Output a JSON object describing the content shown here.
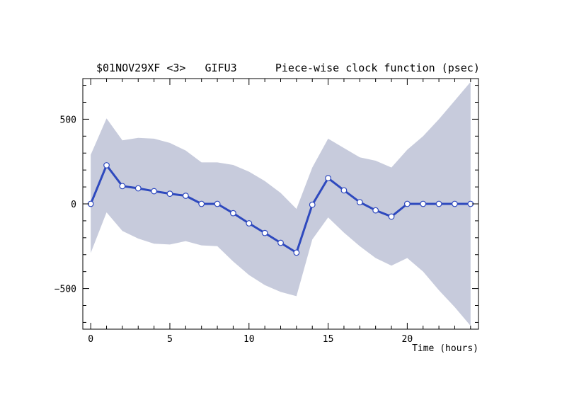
{
  "chart_data": {
    "type": "line",
    "title": "$01NOV29XF <3>   GIFU3      Piece-wise clock function (psec)",
    "xlabel": "Time (hours)",
    "ylabel": "",
    "xlim": [
      -0.5,
      24.5
    ],
    "ylim": [
      -740,
      740
    ],
    "x_ticks": [
      0,
      5,
      10,
      15,
      20
    ],
    "x_tick_labels": [
      "0",
      "5",
      "10",
      "15",
      "20"
    ],
    "y_ticks": [
      500,
      0,
      -500
    ],
    "y_tick_labels": [
      "500",
      "0",
      "−500"
    ],
    "grid": false,
    "series": [
      {
        "values": [
          {
            "x": 0,
            "y": 0
          },
          {
            "x": 1,
            "y": 228
          },
          {
            "x": 2,
            "y": 105
          },
          {
            "x": 3,
            "y": 92
          },
          {
            "x": 4,
            "y": 75
          },
          {
            "x": 5,
            "y": 60
          },
          {
            "x": 6,
            "y": 48
          },
          {
            "x": 7,
            "y": 0
          },
          {
            "x": 8,
            "y": 0
          },
          {
            "x": 9,
            "y": -55
          },
          {
            "x": 10,
            "y": -115
          },
          {
            "x": 11,
            "y": -172
          },
          {
            "x": 12,
            "y": -230
          },
          {
            "x": 13,
            "y": -288
          },
          {
            "x": 14,
            "y": -5
          },
          {
            "x": 15,
            "y": 152
          },
          {
            "x": 16,
            "y": 80
          },
          {
            "x": 17,
            "y": 10
          },
          {
            "x": 18,
            "y": -38
          },
          {
            "x": 19,
            "y": -75
          },
          {
            "x": 20,
            "y": 0
          },
          {
            "x": 21,
            "y": 0
          },
          {
            "x": 22,
            "y": 0
          },
          {
            "x": 23,
            "y": 0
          },
          {
            "x": 24,
            "y": 0
          }
        ]
      }
    ],
    "uncertainty_band": {
      "upper": [
        {
          "x": 0,
          "y": 290
        },
        {
          "x": 1,
          "y": 505
        },
        {
          "x": 2,
          "y": 375
        },
        {
          "x": 3,
          "y": 390
        },
        {
          "x": 4,
          "y": 385
        },
        {
          "x": 5,
          "y": 360
        },
        {
          "x": 6,
          "y": 315
        },
        {
          "x": 7,
          "y": 245
        },
        {
          "x": 8,
          "y": 245
        },
        {
          "x": 9,
          "y": 230
        },
        {
          "x": 10,
          "y": 190
        },
        {
          "x": 11,
          "y": 135
        },
        {
          "x": 12,
          "y": 65
        },
        {
          "x": 13,
          "y": -30
        },
        {
          "x": 14,
          "y": 215
        },
        {
          "x": 15,
          "y": 385
        },
        {
          "x": 16,
          "y": 330
        },
        {
          "x": 17,
          "y": 275
        },
        {
          "x": 18,
          "y": 255
        },
        {
          "x": 19,
          "y": 215
        },
        {
          "x": 20,
          "y": 320
        },
        {
          "x": 21,
          "y": 400
        },
        {
          "x": 22,
          "y": 500
        },
        {
          "x": 23,
          "y": 610
        },
        {
          "x": 24,
          "y": 720
        }
      ],
      "lower": [
        {
          "x": 0,
          "y": -290
        },
        {
          "x": 1,
          "y": -50
        },
        {
          "x": 2,
          "y": -160
        },
        {
          "x": 3,
          "y": -205
        },
        {
          "x": 4,
          "y": -235
        },
        {
          "x": 5,
          "y": -240
        },
        {
          "x": 6,
          "y": -220
        },
        {
          "x": 7,
          "y": -245
        },
        {
          "x": 8,
          "y": -250
        },
        {
          "x": 9,
          "y": -340
        },
        {
          "x": 10,
          "y": -420
        },
        {
          "x": 11,
          "y": -480
        },
        {
          "x": 12,
          "y": -520
        },
        {
          "x": 13,
          "y": -545
        },
        {
          "x": 14,
          "y": -210
        },
        {
          "x": 15,
          "y": -80
        },
        {
          "x": 16,
          "y": -170
        },
        {
          "x": 17,
          "y": -250
        },
        {
          "x": 18,
          "y": -320
        },
        {
          "x": 19,
          "y": -365
        },
        {
          "x": 20,
          "y": -320
        },
        {
          "x": 21,
          "y": -400
        },
        {
          "x": 22,
          "y": -510
        },
        {
          "x": 23,
          "y": -610
        },
        {
          "x": 24,
          "y": -720
        }
      ]
    },
    "colors": {
      "band": "#c7cbdc",
      "line": "#2e49be",
      "marker_fill": "#ffffff",
      "marker_stroke": "#2e49be",
      "frame": "#000000"
    }
  }
}
